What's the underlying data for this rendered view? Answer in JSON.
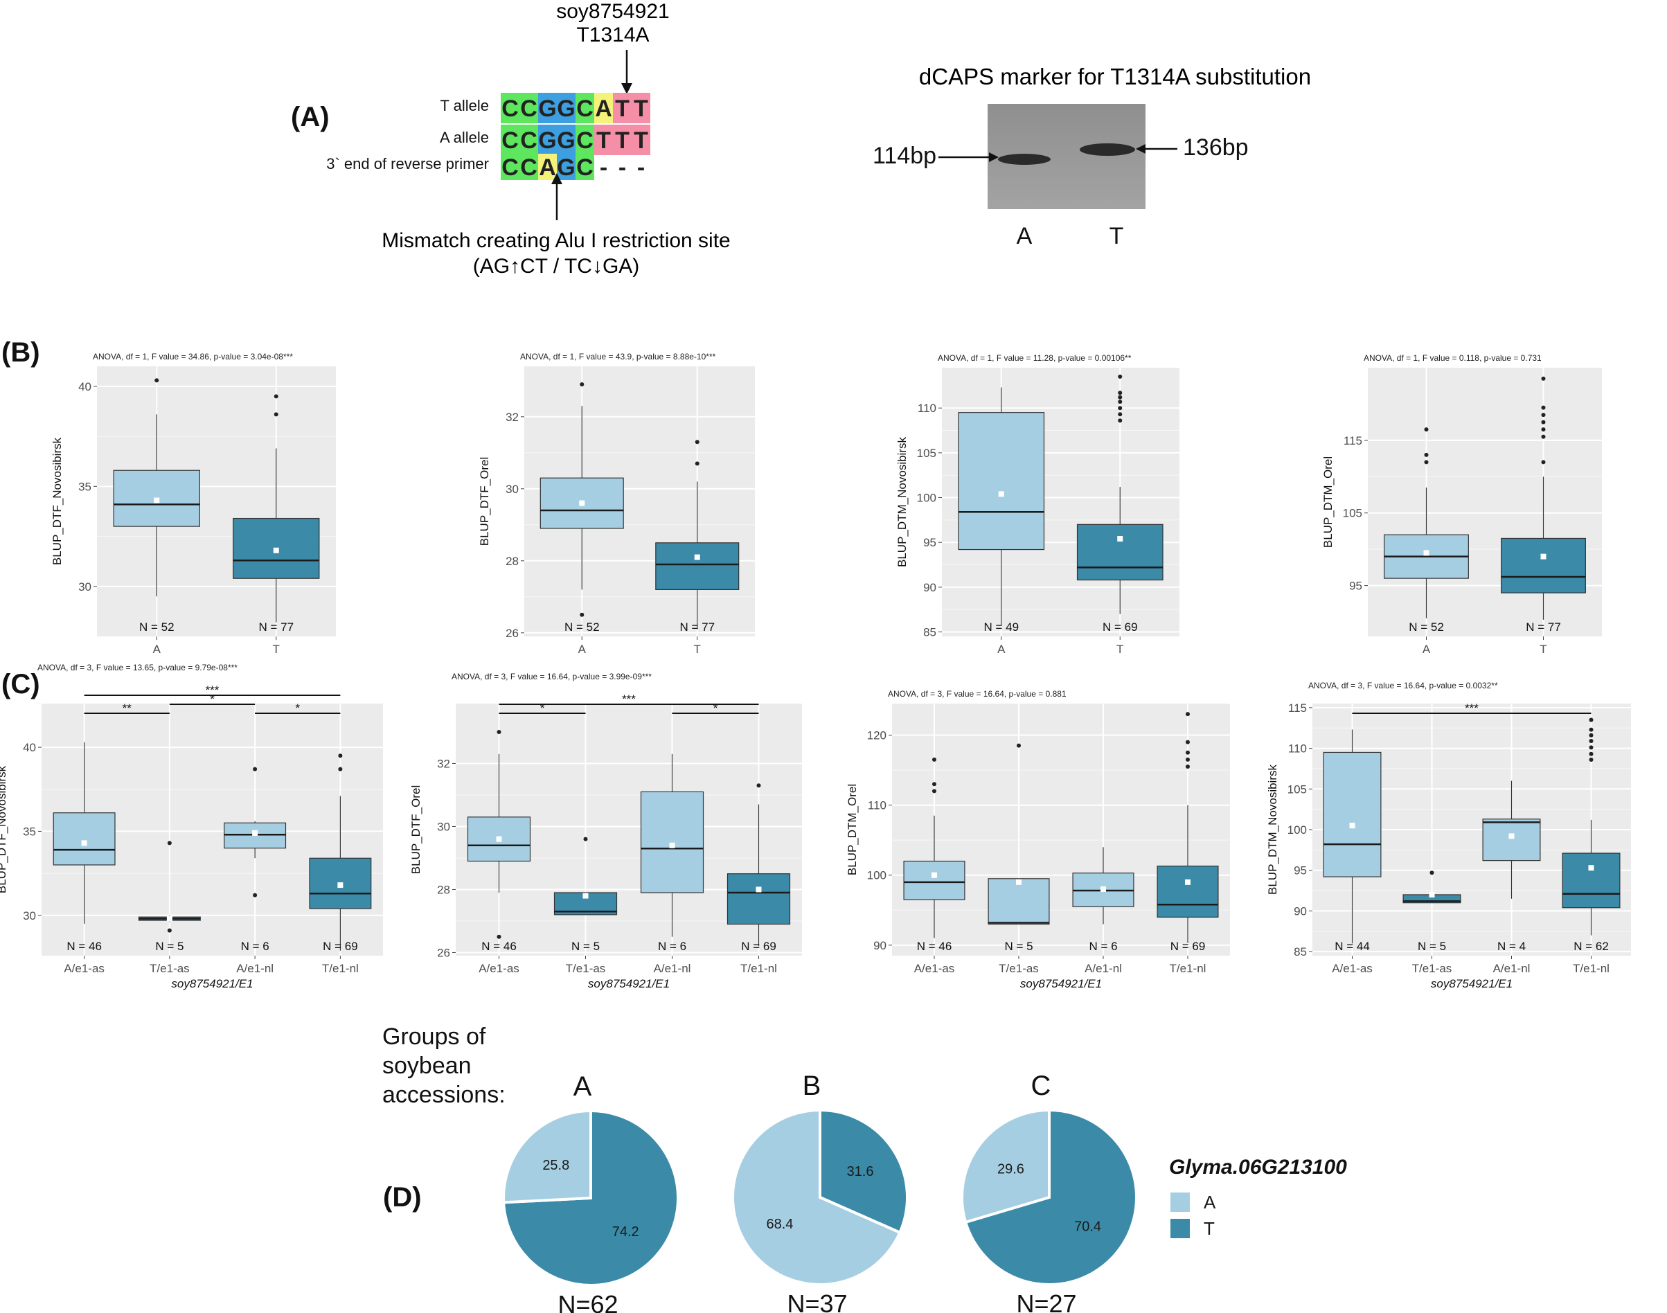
{
  "panel_labels": {
    "a": "(A)",
    "b": "(B)",
    "c": "(C)",
    "d": "(D)"
  },
  "panel_a": {
    "snp_name": "soy8754921",
    "substitution": "T1314A",
    "rows": [
      {
        "label": "T allele",
        "bases": [
          "C",
          "C",
          "G",
          "G",
          "C",
          "A",
          "T",
          "T"
        ],
        "colors": [
          "#5ee65e",
          "#5ee65e",
          "#3d9fe0",
          "#3d9fe0",
          "#5ee65e",
          "#f5f27a",
          "#f58fa8",
          "#f58fa8"
        ]
      },
      {
        "label": "A allele",
        "bases": [
          "C",
          "C",
          "G",
          "G",
          "C",
          "T",
          "T",
          "T"
        ],
        "colors": [
          "#5ee65e",
          "#5ee65e",
          "#3d9fe0",
          "#3d9fe0",
          "#5ee65e",
          "#f58fa8",
          "#f58fa8",
          "#f58fa8"
        ]
      },
      {
        "label": "3` end of reverse primer",
        "bases": [
          "C",
          "C",
          "A",
          "G",
          "C",
          "-",
          "-",
          "-"
        ],
        "colors": [
          "#5ee65e",
          "#5ee65e",
          "#f5f27a",
          "#3d9fe0",
          "#5ee65e",
          "",
          "",
          ""
        ]
      }
    ],
    "mismatch_line1": "Mismatch creating Alu I restriction site",
    "mismatch_line2": "(AG↑CT / TC↓GA)",
    "gel_title": "dCAPS marker for T1314A substitution",
    "band_left": "114bp",
    "band_right": "136bp",
    "lane_a": "A",
    "lane_t": "T"
  },
  "colors": {
    "light": "#a6cee3",
    "dark": "#3a8aa8",
    "panel_bg": "#ebebeb",
    "grid": "#ffffff",
    "median": "#1a1a1a",
    "mean": "#ffffff"
  },
  "chart_data": [
    {
      "id": "B1",
      "type": "box",
      "annotation": "ANOVA, df = 1, F value = 34.86, p-value = 3.04e-08***",
      "ylabel": "BLUP_DTF_Novosibirsk",
      "xlabel": "",
      "ylim": [
        27.5,
        41
      ],
      "yticks": [
        30,
        35,
        40
      ],
      "categories": [
        "A",
        "T"
      ],
      "n_labels": [
        "N = 52",
        "N = 77"
      ],
      "fill": [
        "light",
        "dark"
      ],
      "boxes": [
        {
          "min": 29.5,
          "q1": 33,
          "median": 34.1,
          "q3": 35.8,
          "max": 38.6,
          "mean": 34.3,
          "outliers": [
            40.3
          ]
        },
        {
          "min": 28.2,
          "q1": 30.4,
          "median": 31.3,
          "q3": 33.4,
          "max": 36.9,
          "mean": 31.8,
          "outliers": [
            38.6,
            39.5
          ]
        }
      ],
      "sig": []
    },
    {
      "id": "B2",
      "type": "box",
      "annotation": "ANOVA, df = 1, F value = 43.9, p-value = 8.88e-10***",
      "ylabel": "BLUP_DTF_Orel",
      "xlabel": "",
      "ylim": [
        25.9,
        33.4
      ],
      "yticks": [
        26,
        28,
        30,
        32
      ],
      "categories": [
        "A",
        "T"
      ],
      "n_labels": [
        "N = 52",
        "N = 77"
      ],
      "fill": [
        "light",
        "dark"
      ],
      "boxes": [
        {
          "min": 27.2,
          "q1": 28.9,
          "median": 29.4,
          "q3": 30.3,
          "max": 32.3,
          "mean": 29.6,
          "outliers": [
            26.5,
            32.9
          ]
        },
        {
          "min": 26.1,
          "q1": 27.2,
          "median": 27.9,
          "q3": 28.5,
          "max": 30.2,
          "mean": 28.1,
          "outliers": [
            30.7,
            31.3
          ]
        }
      ],
      "sig": []
    },
    {
      "id": "B3",
      "type": "box",
      "annotation": "ANOVA, df = 1, F value = 11.28, p-value = 0.00106**",
      "ylabel": "BLUP_DTM_Novosibirsk",
      "xlabel": "",
      "ylim": [
        84.5,
        114.5
      ],
      "yticks": [
        85,
        90,
        95,
        100,
        105,
        110
      ],
      "categories": [
        "A",
        "T"
      ],
      "n_labels": [
        "N = 49",
        "N = 69"
      ],
      "fill": [
        "light",
        "dark"
      ],
      "boxes": [
        {
          "min": 85.7,
          "q1": 94.2,
          "median": 98.4,
          "q3": 109.5,
          "max": 112.3,
          "mean": 100.4,
          "outliers": []
        },
        {
          "min": 87,
          "q1": 90.8,
          "median": 92.2,
          "q3": 97,
          "max": 101.2,
          "mean": 95.4,
          "outliers": [
            108.6,
            109.3,
            110,
            110.7,
            111.2,
            111.7,
            113.5
          ]
        }
      ],
      "sig": []
    },
    {
      "id": "B4",
      "type": "box",
      "annotation": "ANOVA, df = 1, F value = 0.118, p-value = 0.731",
      "ylabel": "BLUP_DTM_Orel",
      "xlabel": "",
      "ylim": [
        88,
        125
      ],
      "yticks": [
        95,
        105,
        115
      ],
      "categories": [
        "A",
        "T"
      ],
      "n_labels": [
        "N = 52",
        "N = 77"
      ],
      "fill": [
        "light",
        "dark"
      ],
      "boxes": [
        {
          "min": 90.5,
          "q1": 96,
          "median": 99,
          "q3": 102,
          "max": 108.5,
          "mean": 99.5,
          "outliers": [
            112,
            113,
            116.5
          ]
        },
        {
          "min": 90.3,
          "q1": 94,
          "median": 96.2,
          "q3": 101.5,
          "max": 110,
          "mean": 99,
          "outliers": [
            112,
            115.5,
            116.5,
            117.5,
            118.5,
            119.5,
            123.5
          ]
        }
      ],
      "sig": []
    },
    {
      "id": "C1",
      "type": "box",
      "annotation": "ANOVA, df = 3, F value = 13.65, p-value = 9.79e-08***",
      "ylabel": "BLUP_DTF_Novosibirsk",
      "xlabel": "soy8754921/E1",
      "ylim": [
        27.6,
        42.6
      ],
      "yticks": [
        30,
        35,
        40
      ],
      "categories": [
        "A/e1-as",
        "T/e1-as",
        "A/e1-nl",
        "T/e1-nl"
      ],
      "n_labels": [
        "N = 46",
        "N = 5",
        "N = 6",
        "N = 69"
      ],
      "fill": [
        "light",
        "dark",
        "light",
        "dark"
      ],
      "boxes": [
        {
          "min": 29.5,
          "q1": 33,
          "median": 33.9,
          "q3": 36.1,
          "max": 40.3,
          "mean": 34.3,
          "outliers": []
        },
        {
          "min": 29.6,
          "q1": 29.7,
          "median": 29.8,
          "q3": 29.9,
          "max": 30,
          "mean": 29.8,
          "outliers": [
            34.3,
            29.1
          ]
        },
        {
          "min": 33.4,
          "q1": 34,
          "median": 34.8,
          "q3": 35.5,
          "max": 35.6,
          "mean": 34.9,
          "outliers": [
            38.7,
            31.2
          ]
        },
        {
          "min": 27.9,
          "q1": 30.4,
          "median": 31.3,
          "q3": 33.4,
          "max": 37.1,
          "mean": 31.8,
          "outliers": [
            38.7,
            39.5
          ]
        }
      ],
      "sig": [
        {
          "i": 0,
          "j": 1,
          "level": 1,
          "label": "**"
        },
        {
          "i": 1,
          "j": 2,
          "level": 2,
          "label": "*"
        },
        {
          "i": 2,
          "j": 3,
          "level": 1,
          "label": "*"
        },
        {
          "i": 0,
          "j": 3,
          "level": 3,
          "label": "***"
        }
      ]
    },
    {
      "id": "C2",
      "type": "box",
      "annotation": "ANOVA, df = 3, F value = 16.64, p-value = 3.99e-09***",
      "ylabel": "BLUP_DTF_Orel",
      "xlabel": "soy8754921/E1",
      "ylim": [
        25.9,
        33.9
      ],
      "yticks": [
        26,
        28,
        30,
        32
      ],
      "categories": [
        "A/e1-as",
        "T/e1-as",
        "A/e1-nl",
        "T/e1-nl"
      ],
      "n_labels": [
        "N = 46",
        "N = 5",
        "N = 6",
        "N = 69"
      ],
      "fill": [
        "light",
        "dark",
        "light",
        "dark"
      ],
      "boxes": [
        {
          "min": 27.9,
          "q1": 28.9,
          "median": 29.4,
          "q3": 30.3,
          "max": 32.3,
          "mean": 29.6,
          "outliers": [
            26.5,
            33
          ]
        },
        {
          "min": 27.2,
          "q1": 27.2,
          "median": 27.3,
          "q3": 27.9,
          "max": 27.9,
          "mean": 27.8,
          "outliers": [
            29.6
          ]
        },
        {
          "min": 26.5,
          "q1": 27.9,
          "median": 29.3,
          "q3": 31.1,
          "max": 32.3,
          "mean": 29.4,
          "outliers": []
        },
        {
          "min": 26.2,
          "q1": 26.9,
          "median": 27.9,
          "q3": 28.5,
          "max": 30.7,
          "mean": 28,
          "outliers": [
            31.3
          ]
        }
      ],
      "sig": [
        {
          "i": 0,
          "j": 1,
          "level": 1,
          "label": "*"
        },
        {
          "i": 2,
          "j": 3,
          "level": 1,
          "label": "*"
        },
        {
          "i": 0,
          "j": 3,
          "level": 2,
          "label": "***"
        }
      ]
    },
    {
      "id": "C3",
      "type": "box",
      "annotation": "ANOVA, df = 3, F value = 16.64, p-value = 0.881",
      "ylabel": "BLUP_DTM_Orel",
      "xlabel": "soy8754921/E1",
      "ylim": [
        88.5,
        124.5
      ],
      "yticks": [
        90,
        100,
        110,
        120
      ],
      "categories": [
        "A/e1-as",
        "T/e1-as",
        "A/e1-nl",
        "T/e1-nl"
      ],
      "n_labels": [
        "N = 46",
        "N = 5",
        "N = 6",
        "N = 69"
      ],
      "fill": [
        "light",
        "light",
        "light",
        "dark"
      ],
      "boxes": [
        {
          "min": 91,
          "q1": 96.5,
          "median": 99,
          "q3": 102,
          "max": 108.5,
          "mean": 100,
          "outliers": [
            112,
            113,
            116.5
          ]
        },
        {
          "min": 93,
          "q1": 93,
          "median": 93.2,
          "q3": 99.5,
          "max": 99.5,
          "mean": 99,
          "outliers": [
            118.5
          ]
        },
        {
          "min": 93,
          "q1": 95.5,
          "median": 97.8,
          "q3": 100.3,
          "max": 104,
          "mean": 98,
          "outliers": []
        },
        {
          "min": 90.3,
          "q1": 94,
          "median": 95.8,
          "q3": 101.3,
          "max": 110,
          "mean": 99,
          "outliers": [
            115.5,
            116.5,
            117.5,
            119,
            123
          ]
        }
      ],
      "sig": []
    },
    {
      "id": "C4",
      "type": "box",
      "annotation": "ANOVA, df = 3, F value = 16.64, p-value = 0.0032**",
      "ylabel": "BLUP_DTM_Novosibirsk",
      "xlabel": "soy8754921/E1",
      "ylim": [
        84.5,
        115.5
      ],
      "yticks": [
        85,
        90,
        95,
        100,
        105,
        110,
        115
      ],
      "categories": [
        "A/e1-as",
        "T/e1-as",
        "A/e1-nl",
        "T/e1-nl"
      ],
      "n_labels": [
        "N = 44",
        "N = 5",
        "N = 4",
        "N = 62"
      ],
      "fill": [
        "light",
        "dark",
        "light",
        "dark"
      ],
      "boxes": [
        {
          "min": 86,
          "q1": 94.2,
          "median": 98.2,
          "q3": 109.5,
          "max": 112.3,
          "mean": 100.5,
          "outliers": []
        },
        {
          "min": 91,
          "q1": 91,
          "median": 91.2,
          "q3": 92,
          "max": 92,
          "mean": 92,
          "outliers": [
            94.7
          ]
        },
        {
          "min": 91.5,
          "q1": 96.2,
          "median": 100.9,
          "q3": 101.3,
          "max": 106,
          "mean": 99.2,
          "outliers": []
        },
        {
          "min": 87,
          "q1": 90.4,
          "median": 92.1,
          "q3": 97.1,
          "max": 101.2,
          "mean": 95.3,
          "outliers": [
            108.6,
            109.3,
            110.1,
            110.9,
            111.6,
            112.3,
            113.5
          ]
        }
      ],
      "sig": [
        {
          "i": 0,
          "j": 3,
          "level": 1,
          "label": "***"
        }
      ]
    },
    {
      "id": "D",
      "type": "pie",
      "title_lines": [
        "Groups of",
        "soybean",
        "accessions:"
      ],
      "legend_title": "Glyma.06G213100",
      "legend": [
        "A",
        "T"
      ],
      "pies": [
        {
          "letter": "A",
          "n_label": "N=62",
          "values": {
            "A": 25.8,
            "T": 74.2
          }
        },
        {
          "letter": "B",
          "n_label": "N=37",
          "values": {
            "A": 68.4,
            "T": 31.6
          }
        },
        {
          "letter": "C",
          "n_label": "N=27",
          "values": {
            "A": 29.6,
            "T": 70.4
          }
        }
      ]
    }
  ]
}
